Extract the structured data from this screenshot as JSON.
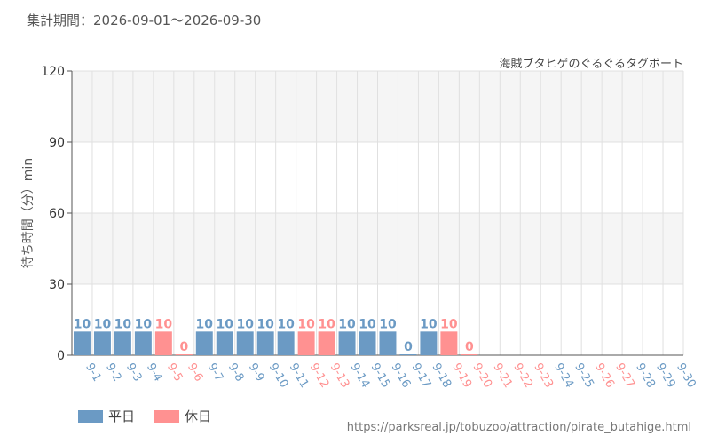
{
  "period": "集計期間：2026-09-01〜2026-09-30",
  "footer_url": "https://parksreal.jp/tobuzoo/attraction/pirate_butahige.html",
  "colors": {
    "weekday": "#6b9ac4",
    "holiday": "#ff9191",
    "grid": "#e0e0e0",
    "band": "#f5f5f5"
  },
  "chart_data": {
    "type": "bar",
    "title": "海賊ブタヒゲのぐるぐるタグボート",
    "ylabel": "待ち時間（分）min",
    "ylim": [
      0,
      120
    ],
    "yticks": [
      0,
      30,
      60,
      90,
      120
    ],
    "legend": {
      "position": "bottom-left",
      "weekday": "平日",
      "holiday": "休日"
    },
    "categories": [
      "9-1",
      "9-2",
      "9-3",
      "9-4",
      "9-5",
      "9-6",
      "9-7",
      "9-8",
      "9-9",
      "9-10",
      "9-11",
      "9-12",
      "9-13",
      "9-14",
      "9-15",
      "9-16",
      "9-17",
      "9-18",
      "9-19",
      "9-20",
      "9-21",
      "9-22",
      "9-23",
      "9-24",
      "9-25",
      "9-26",
      "9-27",
      "9-28",
      "9-29",
      "9-30"
    ],
    "day_types": [
      "weekday",
      "weekday",
      "weekday",
      "weekday",
      "holiday",
      "holiday",
      "weekday",
      "weekday",
      "weekday",
      "weekday",
      "weekday",
      "holiday",
      "holiday",
      "weekday",
      "weekday",
      "weekday",
      "weekday",
      "weekday",
      "holiday",
      "holiday",
      "holiday",
      "holiday",
      "holiday",
      "weekday",
      "weekday",
      "holiday",
      "holiday",
      "weekday",
      "weekday",
      "weekday"
    ],
    "values": [
      10,
      10,
      10,
      10,
      10,
      0,
      10,
      10,
      10,
      10,
      10,
      10,
      10,
      10,
      10,
      10,
      0,
      10,
      10,
      0,
      null,
      null,
      null,
      null,
      null,
      null,
      null,
      null,
      null,
      null
    ]
  }
}
